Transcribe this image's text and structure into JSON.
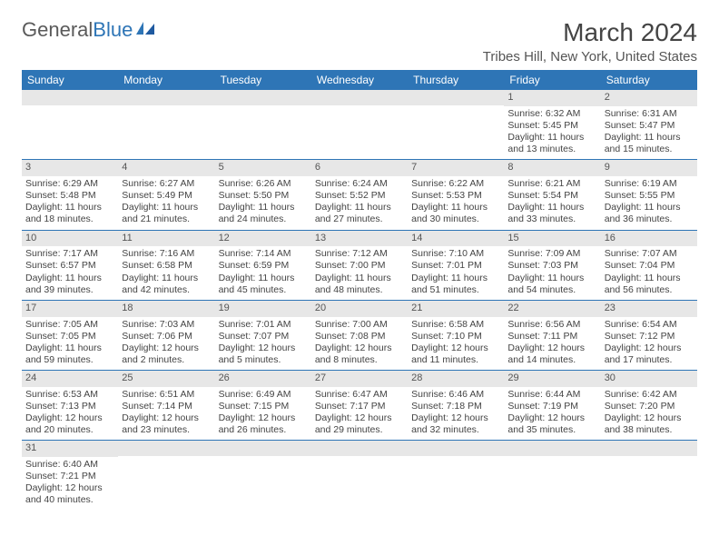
{
  "logo": {
    "text1": "General",
    "text2": "Blue"
  },
  "title": "March 2024",
  "location": "Tribes Hill, New York, United States",
  "colors": {
    "header_bg": "#2e75b6",
    "header_fg": "#ffffff",
    "daynum_bg": "#e7e7e7",
    "row_border": "#2e75b6",
    "text": "#444444"
  },
  "day_names": [
    "Sunday",
    "Monday",
    "Tuesday",
    "Wednesday",
    "Thursday",
    "Friday",
    "Saturday"
  ],
  "weeks": [
    [
      null,
      null,
      null,
      null,
      null,
      {
        "n": "1",
        "sr": "Sunrise: 6:32 AM",
        "ss": "Sunset: 5:45 PM",
        "d1": "Daylight: 11 hours",
        "d2": "and 13 minutes."
      },
      {
        "n": "2",
        "sr": "Sunrise: 6:31 AM",
        "ss": "Sunset: 5:47 PM",
        "d1": "Daylight: 11 hours",
        "d2": "and 15 minutes."
      }
    ],
    [
      {
        "n": "3",
        "sr": "Sunrise: 6:29 AM",
        "ss": "Sunset: 5:48 PM",
        "d1": "Daylight: 11 hours",
        "d2": "and 18 minutes."
      },
      {
        "n": "4",
        "sr": "Sunrise: 6:27 AM",
        "ss": "Sunset: 5:49 PM",
        "d1": "Daylight: 11 hours",
        "d2": "and 21 minutes."
      },
      {
        "n": "5",
        "sr": "Sunrise: 6:26 AM",
        "ss": "Sunset: 5:50 PM",
        "d1": "Daylight: 11 hours",
        "d2": "and 24 minutes."
      },
      {
        "n": "6",
        "sr": "Sunrise: 6:24 AM",
        "ss": "Sunset: 5:52 PM",
        "d1": "Daylight: 11 hours",
        "d2": "and 27 minutes."
      },
      {
        "n": "7",
        "sr": "Sunrise: 6:22 AM",
        "ss": "Sunset: 5:53 PM",
        "d1": "Daylight: 11 hours",
        "d2": "and 30 minutes."
      },
      {
        "n": "8",
        "sr": "Sunrise: 6:21 AM",
        "ss": "Sunset: 5:54 PM",
        "d1": "Daylight: 11 hours",
        "d2": "and 33 minutes."
      },
      {
        "n": "9",
        "sr": "Sunrise: 6:19 AM",
        "ss": "Sunset: 5:55 PM",
        "d1": "Daylight: 11 hours",
        "d2": "and 36 minutes."
      }
    ],
    [
      {
        "n": "10",
        "sr": "Sunrise: 7:17 AM",
        "ss": "Sunset: 6:57 PM",
        "d1": "Daylight: 11 hours",
        "d2": "and 39 minutes."
      },
      {
        "n": "11",
        "sr": "Sunrise: 7:16 AM",
        "ss": "Sunset: 6:58 PM",
        "d1": "Daylight: 11 hours",
        "d2": "and 42 minutes."
      },
      {
        "n": "12",
        "sr": "Sunrise: 7:14 AM",
        "ss": "Sunset: 6:59 PM",
        "d1": "Daylight: 11 hours",
        "d2": "and 45 minutes."
      },
      {
        "n": "13",
        "sr": "Sunrise: 7:12 AM",
        "ss": "Sunset: 7:00 PM",
        "d1": "Daylight: 11 hours",
        "d2": "and 48 minutes."
      },
      {
        "n": "14",
        "sr": "Sunrise: 7:10 AM",
        "ss": "Sunset: 7:01 PM",
        "d1": "Daylight: 11 hours",
        "d2": "and 51 minutes."
      },
      {
        "n": "15",
        "sr": "Sunrise: 7:09 AM",
        "ss": "Sunset: 7:03 PM",
        "d1": "Daylight: 11 hours",
        "d2": "and 54 minutes."
      },
      {
        "n": "16",
        "sr": "Sunrise: 7:07 AM",
        "ss": "Sunset: 7:04 PM",
        "d1": "Daylight: 11 hours",
        "d2": "and 56 minutes."
      }
    ],
    [
      {
        "n": "17",
        "sr": "Sunrise: 7:05 AM",
        "ss": "Sunset: 7:05 PM",
        "d1": "Daylight: 11 hours",
        "d2": "and 59 minutes."
      },
      {
        "n": "18",
        "sr": "Sunrise: 7:03 AM",
        "ss": "Sunset: 7:06 PM",
        "d1": "Daylight: 12 hours",
        "d2": "and 2 minutes."
      },
      {
        "n": "19",
        "sr": "Sunrise: 7:01 AM",
        "ss": "Sunset: 7:07 PM",
        "d1": "Daylight: 12 hours",
        "d2": "and 5 minutes."
      },
      {
        "n": "20",
        "sr": "Sunrise: 7:00 AM",
        "ss": "Sunset: 7:08 PM",
        "d1": "Daylight: 12 hours",
        "d2": "and 8 minutes."
      },
      {
        "n": "21",
        "sr": "Sunrise: 6:58 AM",
        "ss": "Sunset: 7:10 PM",
        "d1": "Daylight: 12 hours",
        "d2": "and 11 minutes."
      },
      {
        "n": "22",
        "sr": "Sunrise: 6:56 AM",
        "ss": "Sunset: 7:11 PM",
        "d1": "Daylight: 12 hours",
        "d2": "and 14 minutes."
      },
      {
        "n": "23",
        "sr": "Sunrise: 6:54 AM",
        "ss": "Sunset: 7:12 PM",
        "d1": "Daylight: 12 hours",
        "d2": "and 17 minutes."
      }
    ],
    [
      {
        "n": "24",
        "sr": "Sunrise: 6:53 AM",
        "ss": "Sunset: 7:13 PM",
        "d1": "Daylight: 12 hours",
        "d2": "and 20 minutes."
      },
      {
        "n": "25",
        "sr": "Sunrise: 6:51 AM",
        "ss": "Sunset: 7:14 PM",
        "d1": "Daylight: 12 hours",
        "d2": "and 23 minutes."
      },
      {
        "n": "26",
        "sr": "Sunrise: 6:49 AM",
        "ss": "Sunset: 7:15 PM",
        "d1": "Daylight: 12 hours",
        "d2": "and 26 minutes."
      },
      {
        "n": "27",
        "sr": "Sunrise: 6:47 AM",
        "ss": "Sunset: 7:17 PM",
        "d1": "Daylight: 12 hours",
        "d2": "and 29 minutes."
      },
      {
        "n": "28",
        "sr": "Sunrise: 6:46 AM",
        "ss": "Sunset: 7:18 PM",
        "d1": "Daylight: 12 hours",
        "d2": "and 32 minutes."
      },
      {
        "n": "29",
        "sr": "Sunrise: 6:44 AM",
        "ss": "Sunset: 7:19 PM",
        "d1": "Daylight: 12 hours",
        "d2": "and 35 minutes."
      },
      {
        "n": "30",
        "sr": "Sunrise: 6:42 AM",
        "ss": "Sunset: 7:20 PM",
        "d1": "Daylight: 12 hours",
        "d2": "and 38 minutes."
      }
    ],
    [
      {
        "n": "31",
        "sr": "Sunrise: 6:40 AM",
        "ss": "Sunset: 7:21 PM",
        "d1": "Daylight: 12 hours",
        "d2": "and 40 minutes."
      },
      null,
      null,
      null,
      null,
      null,
      null
    ]
  ]
}
